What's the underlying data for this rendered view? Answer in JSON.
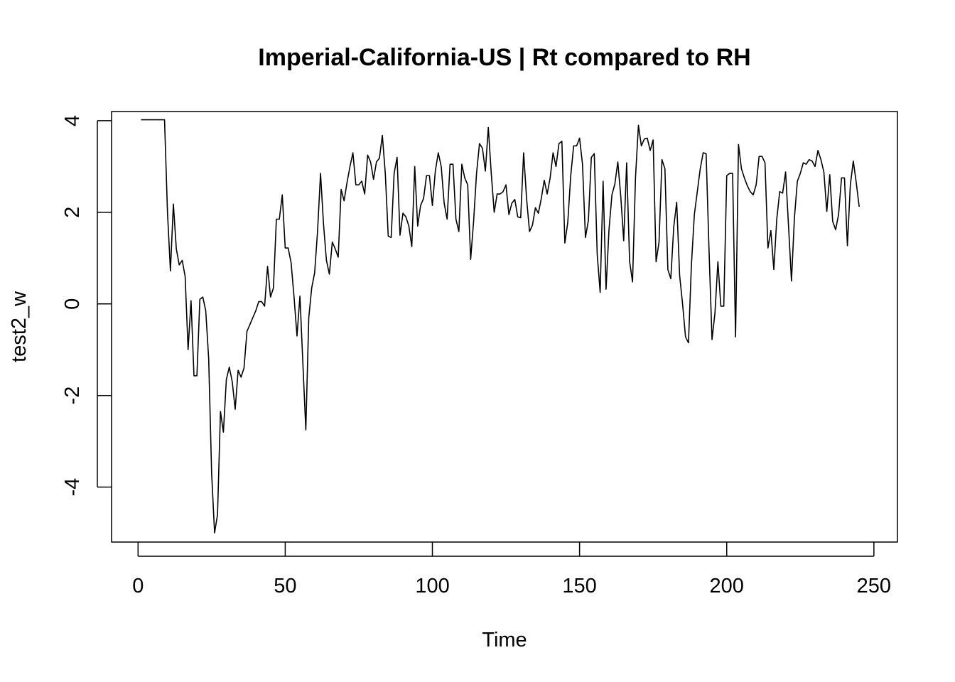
{
  "chart_data": {
    "type": "line",
    "title": "Imperial-California-US | Rt compared to RH",
    "xlabel": "Time",
    "ylabel": "test2_w",
    "xlim": [
      -9,
      258
    ],
    "ylim": [
      -5.2,
      4.2
    ],
    "x_ticks": [
      0,
      50,
      100,
      150,
      200,
      250
    ],
    "y_ticks": [
      -4,
      -2,
      0,
      2,
      4
    ],
    "grid": false,
    "series": [
      {
        "x_start": 1,
        "values": [
          4.02,
          4.02,
          4.02,
          4.02,
          4.02,
          4.02,
          4.02,
          4.02,
          4.02,
          2.0,
          0.72,
          2.18,
          1.2,
          0.85,
          0.95,
          0.6,
          -1.0,
          0.07,
          -1.57,
          -1.57,
          0.1,
          0.15,
          -0.15,
          -1.2,
          -3.7,
          -5.0,
          -4.6,
          -2.35,
          -2.8,
          -1.65,
          -1.38,
          -1.7,
          -2.3,
          -1.45,
          -1.6,
          -1.4,
          -0.6,
          -0.45,
          -0.3,
          -0.15,
          0.05,
          0.05,
          -0.05,
          0.82,
          0.15,
          0.35,
          1.85,
          1.85,
          2.38,
          1.22,
          1.22,
          0.9,
          0.15,
          -0.7,
          0.17,
          -1.3,
          -2.75,
          -0.3,
          0.35,
          0.68,
          1.6,
          2.85,
          1.75,
          0.95,
          0.65,
          1.35,
          1.2,
          1.02,
          2.5,
          2.25,
          2.65,
          3.0,
          3.3,
          2.6,
          2.6,
          2.68,
          2.4,
          3.25,
          3.1,
          2.72,
          3.1,
          3.18,
          3.68,
          2.85,
          1.48,
          1.45,
          2.85,
          3.2,
          1.5,
          1.98,
          1.9,
          1.7,
          1.25,
          3.0,
          1.7,
          2.15,
          2.3,
          2.8,
          2.8,
          2.15,
          2.9,
          3.3,
          3.0,
          2.2,
          1.85,
          3.05,
          3.05,
          1.85,
          1.58,
          3.05,
          2.75,
          2.6,
          0.97,
          1.8,
          2.85,
          3.5,
          3.4,
          2.9,
          3.85,
          2.85,
          2.0,
          2.4,
          2.4,
          2.45,
          2.6,
          1.95,
          2.2,
          2.28,
          1.9,
          1.88,
          3.3,
          2.3,
          1.58,
          1.72,
          2.1,
          1.98,
          2.3,
          2.7,
          2.4,
          2.75,
          3.3,
          3.0,
          3.5,
          3.55,
          1.33,
          1.78,
          2.8,
          3.45,
          3.45,
          3.62,
          3.05,
          1.45,
          1.82,
          3.2,
          3.28,
          1.08,
          0.25,
          2.68,
          0.32,
          1.62,
          2.38,
          2.62,
          3.1,
          2.35,
          1.38,
          3.08,
          0.93,
          0.48,
          2.75,
          3.9,
          3.45,
          3.6,
          3.62,
          3.35,
          3.58,
          0.92,
          1.35,
          3.15,
          2.95,
          0.75,
          0.55,
          1.68,
          2.22,
          0.62,
          0.0,
          -0.72,
          -0.85,
          0.85,
          1.95,
          2.45,
          2.95,
          3.3,
          3.28,
          1.15,
          -0.78,
          -0.2,
          0.92,
          -0.05,
          -0.05,
          2.8,
          2.85,
          2.85,
          -0.72,
          3.48,
          2.95,
          2.75,
          2.58,
          2.45,
          2.38,
          2.6,
          3.22,
          3.22,
          3.08,
          1.22,
          1.6,
          0.75,
          1.85,
          2.45,
          2.42,
          2.88,
          1.7,
          0.5,
          1.88,
          2.68,
          2.85,
          3.08,
          3.05,
          3.15,
          3.12,
          3.0,
          3.35,
          3.15,
          2.88,
          2.02,
          2.82,
          1.8,
          1.62,
          1.95,
          2.75,
          2.75,
          1.27,
          2.6,
          3.12,
          2.65,
          2.12
        ]
      }
    ]
  }
}
